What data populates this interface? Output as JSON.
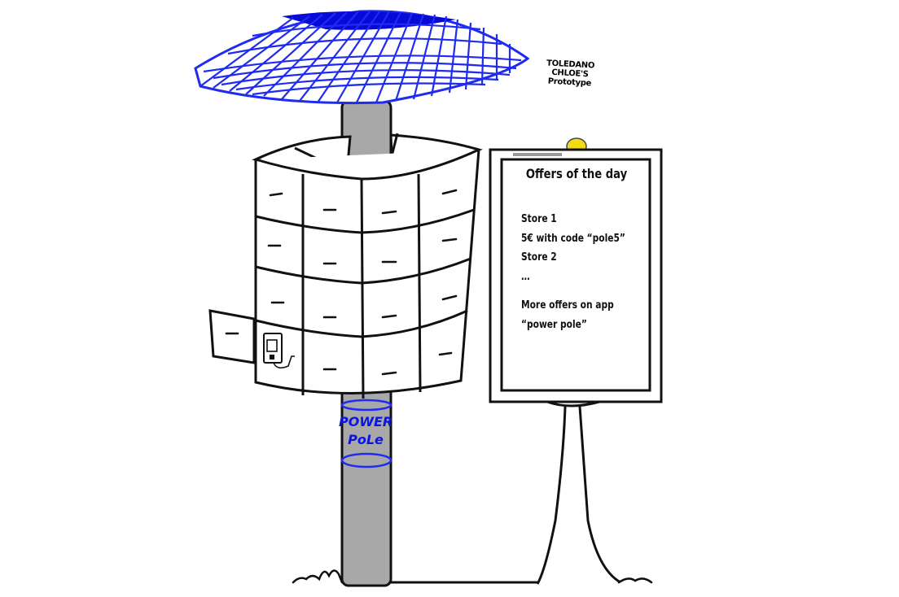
{
  "caption": {
    "line1": "TOLEDANO",
    "line2": "CHLOE'S",
    "line3": "Prototype"
  },
  "sign": {
    "title": "Offers of the day",
    "lines": [
      "Store 1",
      "5€ with code “pole5”",
      "Store 2",
      "…",
      "",
      "More offers on app",
      "“power pole”"
    ]
  },
  "pole_label": {
    "line1": "POWER",
    "line2": "PoLe"
  },
  "colors": {
    "solar_panel": "#1f2bf0",
    "solar_panel_dark": "#0a0ad8",
    "pole": "#a8a8a8",
    "lamp": "#f4dc14",
    "label": "#0a14e6",
    "outline": "#000000"
  }
}
